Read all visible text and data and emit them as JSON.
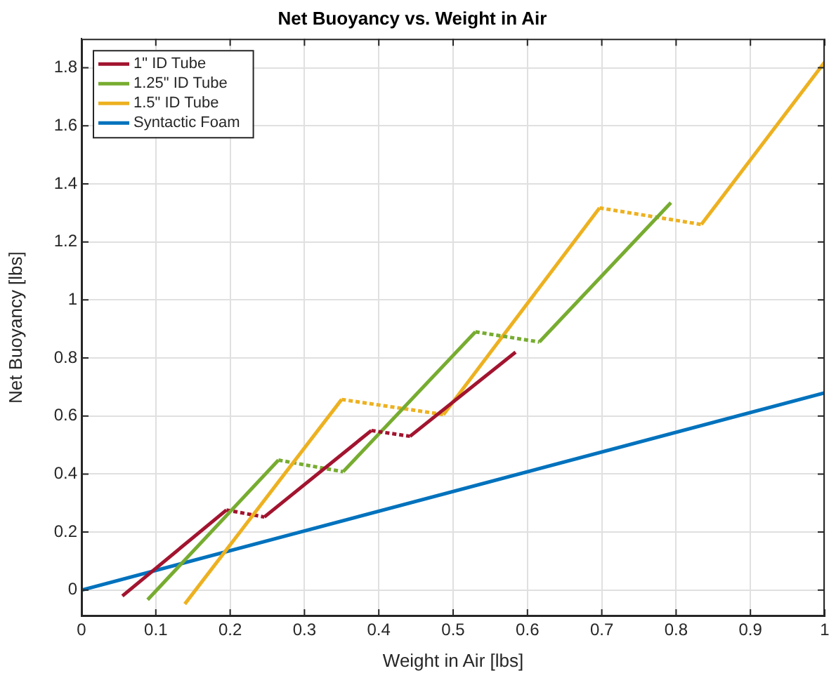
{
  "chart_data": {
    "type": "line",
    "title": "Net Buoyancy vs. Weight in Air",
    "xlabel": "Weight in Air [lbs]",
    "ylabel": "Net Buoyancy [lbs]",
    "xlim": [
      0,
      1
    ],
    "xticks": [
      0,
      0.1,
      0.2,
      0.3,
      0.4,
      0.5,
      0.6,
      0.7,
      0.8,
      0.9,
      1
    ],
    "ylim": [
      -0.09,
      1.9
    ],
    "yticks": [
      0,
      0.2,
      0.4,
      0.6,
      0.8,
      1,
      1.2,
      1.4,
      1.6,
      1.8
    ],
    "grid": true,
    "legend": "top left",
    "line_style": "solid",
    "marker": "none",
    "series": [
      {
        "name": "1\" ID Tube",
        "color": "#a2142f",
        "x": [
          0.055,
          0.195
        ],
        "values": [
          -0.02,
          0.276
        ]
      },
      {
        "name": "1.25\" ID Tube",
        "color": "#77ac30",
        "x": [
          0.089,
          0.265
        ],
        "values": [
          -0.033,
          0.448
        ]
      },
      {
        "name": "1.5\" ID Tube",
        "color": "#edb120",
        "x": [
          0.139,
          0.35
        ],
        "values": [
          -0.048,
          0.657
        ]
      },
      {
        "name": "Syntactic Foam",
        "color": "#0072bd",
        "x": [
          0,
          1
        ],
        "values": [
          0,
          0.68
        ]
      },
      {
        "color": "#a2142f",
        "line_style": "dotted",
        "x": [
          0.195,
          0.246
        ],
        "values": [
          0.276,
          0.252
        ]
      },
      {
        "color": "#a2142f",
        "x": [
          0.246,
          0.39
        ],
        "values": [
          0.252,
          0.55
        ]
      },
      {
        "color": "#a2142f",
        "line_style": "dotted",
        "x": [
          0.39,
          0.442
        ],
        "values": [
          0.55,
          0.53
        ]
      },
      {
        "color": "#a2142f",
        "x": [
          0.442,
          0.584
        ],
        "values": [
          0.53,
          0.82
        ]
      },
      {
        "color": "#77ac30",
        "line_style": "dotted",
        "x": [
          0.265,
          0.352
        ],
        "values": [
          0.448,
          0.408
        ]
      },
      {
        "color": "#77ac30",
        "x": [
          0.352,
          0.53
        ],
        "values": [
          0.408,
          0.89
        ]
      },
      {
        "color": "#77ac30",
        "line_style": "dotted",
        "x": [
          0.53,
          0.616
        ],
        "values": [
          0.89,
          0.855
        ]
      },
      {
        "color": "#77ac30",
        "x": [
          0.616,
          0.793
        ],
        "values": [
          0.855,
          1.335
        ]
      },
      {
        "color": "#edb120",
        "line_style": "dotted",
        "x": [
          0.35,
          0.487
        ],
        "values": [
          0.657,
          0.605
        ]
      },
      {
        "color": "#edb120",
        "x": [
          0.487,
          0.697
        ],
        "values": [
          0.605,
          1.317
        ]
      },
      {
        "color": "#edb120",
        "line_style": "dotted",
        "x": [
          0.697,
          0.834
        ],
        "values": [
          1.317,
          1.26
        ]
      },
      {
        "color": "#edb120",
        "x": [
          0.834,
          1
        ],
        "values": [
          1.26,
          1.82
        ]
      }
    ]
  }
}
